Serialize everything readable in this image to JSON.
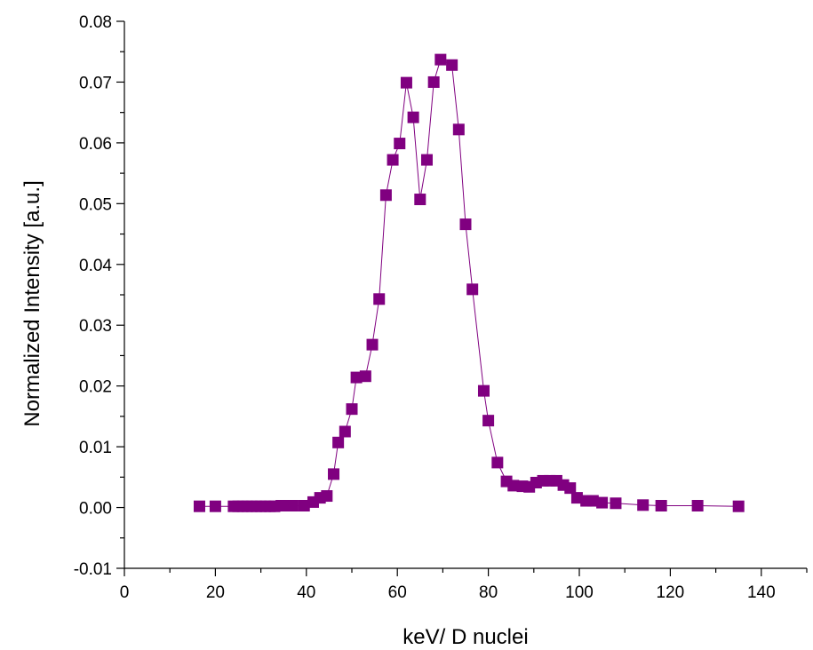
{
  "chart_data": {
    "type": "scatter",
    "title": "",
    "xlabel": "keV/ D nuclei",
    "ylabel": "Normalized Intensity [a.u.]",
    "xlim": [
      0,
      150
    ],
    "ylim": [
      -0.01,
      0.08
    ],
    "x_ticks": [
      0,
      20,
      40,
      60,
      80,
      100,
      120,
      140
    ],
    "x_tick_labels": [
      "0",
      "20",
      "40",
      "60",
      "80",
      "100",
      "120",
      "140"
    ],
    "y_ticks": [
      -0.01,
      0.0,
      0.01,
      0.02,
      0.03,
      0.04,
      0.05,
      0.06,
      0.07,
      0.08
    ],
    "y_tick_labels": [
      "-0.01",
      "0.00",
      "0.01",
      "0.02",
      "0.03",
      "0.04",
      "0.05",
      "0.06",
      "0.07",
      "0.08"
    ],
    "grid": false,
    "legend": "none",
    "marker": "square",
    "connected": true,
    "color": "#800080",
    "series": [
      {
        "x": [
          16.5,
          20.0,
          24.0,
          25.0,
          26.0,
          27.0,
          28.0,
          29.0,
          30.0,
          31.0,
          32.0,
          33.0,
          34.5,
          35.5,
          37.0,
          39.5,
          41.5,
          43.0,
          44.5,
          46.0,
          47.0,
          48.5,
          50.0,
          51.0,
          53.0,
          54.5,
          56.0,
          57.5,
          59.0,
          60.5,
          62.0,
          63.5,
          65.0,
          66.5,
          68.0,
          69.5,
          72.0,
          73.5,
          75.0,
          76.5,
          79.0,
          80.0,
          82.0,
          84.0,
          85.5,
          87.5,
          89.0,
          90.5,
          92.0,
          93.5,
          95.0,
          96.5,
          98.0,
          99.5,
          101.5,
          103.0,
          105.0,
          108.0,
          114.0,
          118.0,
          126.0,
          135.0
        ],
        "y": [
          0.0002,
          0.0002,
          0.0002,
          0.0002,
          0.0002,
          0.0002,
          0.0002,
          0.0002,
          0.0002,
          0.0002,
          0.0002,
          0.0002,
          0.0003,
          0.0003,
          0.0003,
          0.0003,
          0.0009,
          0.0016,
          0.0019,
          0.0055,
          0.0107,
          0.0125,
          0.0162,
          0.0214,
          0.0216,
          0.0268,
          0.0343,
          0.0514,
          0.0572,
          0.0599,
          0.0699,
          0.0642,
          0.0507,
          0.0572,
          0.07,
          0.0737,
          0.0728,
          0.0622,
          0.0466,
          0.0359,
          0.0192,
          0.0143,
          0.0074,
          0.0043,
          0.0036,
          0.0035,
          0.0034,
          0.0041,
          0.0044,
          0.0044,
          0.0044,
          0.0037,
          0.0032,
          0.0016,
          0.0011,
          0.0011,
          0.0008,
          0.0007,
          0.0004,
          0.0003,
          0.0003,
          0.0002
        ]
      }
    ]
  }
}
